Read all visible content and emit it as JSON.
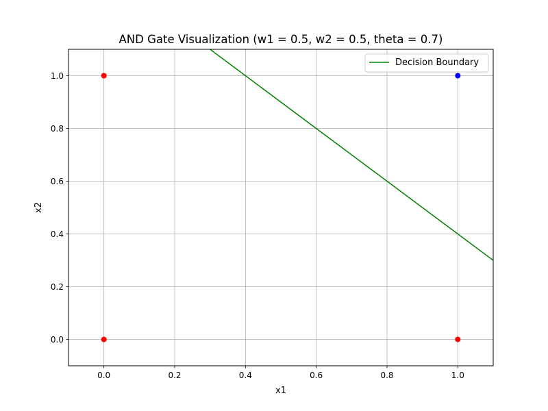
{
  "chart_data": {
    "type": "scatter",
    "title": "AND Gate Visualization (w1 = 0.5, w2 = 0.5, theta = 0.7)",
    "xlabel": "x1",
    "ylabel": "x2",
    "xlim": [
      -0.1,
      1.1
    ],
    "ylim": [
      -0.1,
      1.1
    ],
    "grid": true,
    "xticks": [
      0.0,
      0.2,
      0.4,
      0.6,
      0.8,
      1.0
    ],
    "yticks": [
      0.0,
      0.2,
      0.4,
      0.6,
      0.8,
      1.0
    ],
    "xtick_labels": [
      "0.0",
      "0.2",
      "0.4",
      "0.6",
      "0.8",
      "1.0"
    ],
    "ytick_labels": [
      "0.0",
      "0.2",
      "0.4",
      "0.6",
      "0.8",
      "1.0"
    ],
    "points": [
      {
        "x": 0,
        "y": 0,
        "color": "#ff0000"
      },
      {
        "x": 0,
        "y": 1,
        "color": "#ff0000"
      },
      {
        "x": 1,
        "y": 0,
        "color": "#ff0000"
      },
      {
        "x": 1,
        "y": 1,
        "color": "#0000ff"
      }
    ],
    "series": [
      {
        "name": "Decision Boundary",
        "type": "line",
        "color": "#008000",
        "x": [
          -0.1,
          1.1
        ],
        "y": [
          1.5,
          0.3
        ]
      }
    ],
    "legend": {
      "placement": "top-right",
      "entries": [
        "Decision Boundary"
      ]
    }
  }
}
